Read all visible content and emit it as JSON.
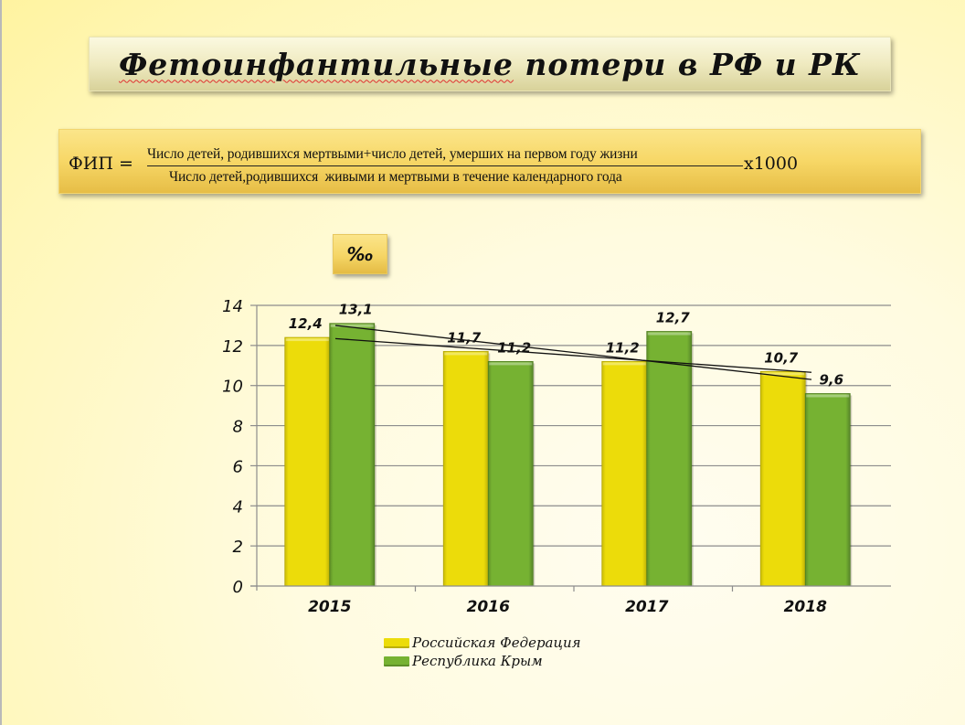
{
  "slide": {
    "title": "Фетоинфантильные потери в РФ и РК",
    "title_misspelled_word": "Фетоинфантильные",
    "title_rest": " потери в РФ и РК"
  },
  "formula": {
    "lhs": "ФИП =",
    "numerator": "Число детей, родившихся мертвыми+число детей, умерших на первом году жизни",
    "denominator": "Число детей,родившихся  живыми и мертвыми в течение календарного года",
    "multiplier": "х1000"
  },
  "unit_badge": "‰",
  "colors": {
    "rf_bar": "#ecdc0a",
    "rk_bar": "#76b232",
    "grid": "#8c8c8c",
    "trend_line": "#111111",
    "formula_box": "#f7d766",
    "title_box": "#efeac0"
  },
  "chart_data": {
    "type": "bar",
    "title": "",
    "unit": "‰",
    "xlabel": "",
    "ylabel": "‰",
    "categories": [
      "2015",
      "2016",
      "2017",
      "2018"
    ],
    "series": [
      {
        "name": "Российская Федерация",
        "values": [
          12.4,
          11.7,
          11.2,
          10.7
        ],
        "labels": [
          "12,4",
          "11,7",
          "11,2",
          "10,7"
        ],
        "color": "#ecdc0a"
      },
      {
        "name": "Республика Крым",
        "values": [
          13.1,
          11.2,
          12.7,
          9.6
        ],
        "labels": [
          "13,1",
          "11,2",
          "12,7",
          "9,6"
        ],
        "color": "#76b232"
      }
    ],
    "trendlines": [
      {
        "series": "Российская Федерация",
        "type": "linear"
      },
      {
        "series": "Республика Крым",
        "type": "linear"
      }
    ],
    "ylim": [
      0,
      14
    ],
    "yticks": [
      0,
      2,
      4,
      6,
      8,
      10,
      12,
      14
    ],
    "ytick_labels": [
      "0",
      "2",
      "4",
      "6",
      "8",
      "10",
      "12",
      "14"
    ],
    "grid": true,
    "legend_position": "bottom"
  },
  "legend": [
    {
      "label": "Российская Федерация"
    },
    {
      "label": "Республика Крым"
    }
  ]
}
